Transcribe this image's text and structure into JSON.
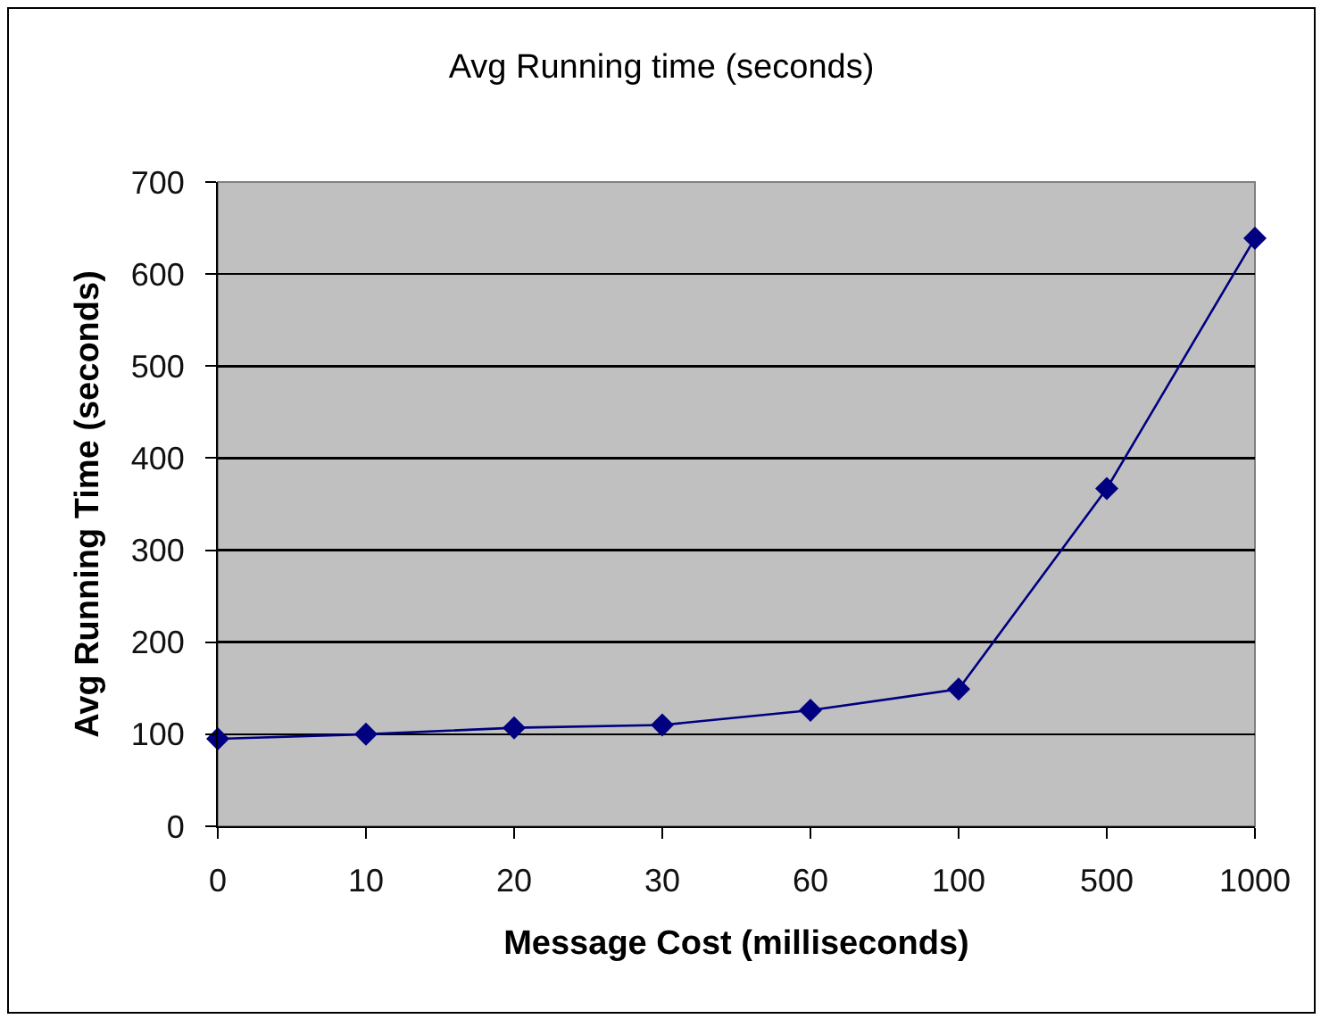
{
  "chart_data": {
    "type": "line",
    "title": "Avg Running time (seconds)",
    "xlabel": "Message Cost (milliseconds)",
    "ylabel": "Avg Running Time (seconds)",
    "categories": [
      "0",
      "10",
      "20",
      "30",
      "60",
      "100",
      "500",
      "1000"
    ],
    "series": [
      {
        "color": "#000080",
        "values": [
          95,
          100,
          107,
          110,
          126,
          149,
          367,
          639
        ]
      }
    ],
    "ylim": [
      0,
      700
    ],
    "yticks": [
      0,
      100,
      200,
      300,
      400,
      500,
      600,
      700
    ],
    "grid": "y",
    "marker": "diamond",
    "line_style": "solid"
  }
}
